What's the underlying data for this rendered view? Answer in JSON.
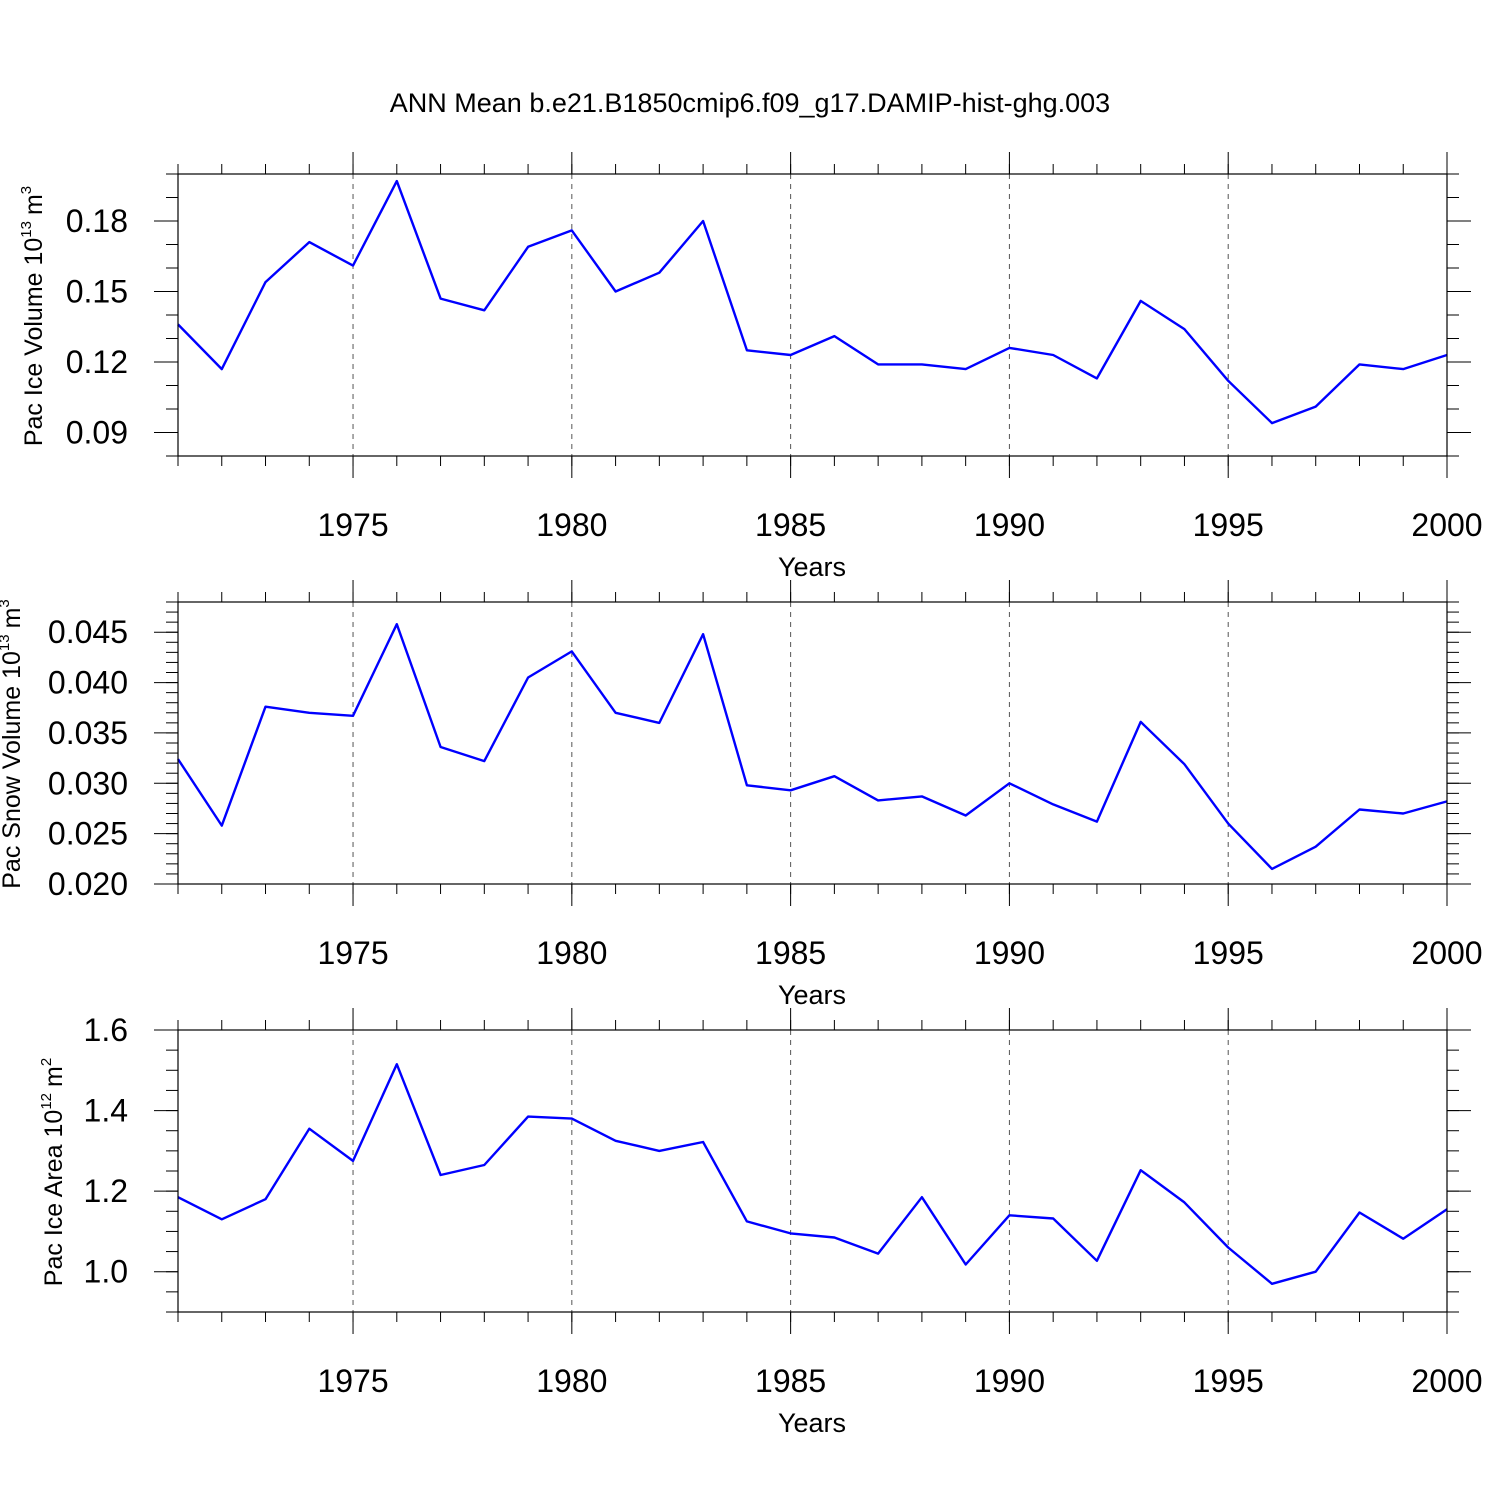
{
  "chart_data": {
    "title": "ANN Mean b.e21.B1850cmip6.f09_g17.DAMIP-hist-ghg.003",
    "panels": [
      {
        "type": "line",
        "ylabel_main": "Pac Ice Volume 10",
        "ylabel_exp": "13",
        "ylabel_unit": "m",
        "ylabel_unit_exp": "3",
        "xlabel": "Years",
        "xlim": [
          1971,
          2000
        ],
        "ylim": [
          0.08,
          0.2
        ],
        "yticks": [
          0.09,
          0.12,
          0.15,
          0.18
        ],
        "ytick_labels": [
          "0.09",
          "0.12",
          "0.15",
          "0.18"
        ],
        "y_minor_step": 0.01,
        "xticks": [
          1975,
          1980,
          1985,
          1990,
          1995,
          2000
        ],
        "xtick_labels": [
          "1975",
          "1980",
          "1985",
          "1990",
          "1995",
          "2000"
        ],
        "grid": "vertical-dashed",
        "color": "#0000ff",
        "x": [
          1971,
          1972,
          1973,
          1974,
          1975,
          1976,
          1977,
          1978,
          1979,
          1980,
          1981,
          1982,
          1983,
          1984,
          1985,
          1986,
          1987,
          1988,
          1989,
          1990,
          1991,
          1992,
          1993,
          1994,
          1995,
          1996,
          1997,
          1998,
          1999,
          2000
        ],
        "values": [
          0.136,
          0.117,
          0.154,
          0.171,
          0.161,
          0.197,
          0.147,
          0.142,
          0.169,
          0.176,
          0.15,
          0.158,
          0.18,
          0.125,
          0.123,
          0.131,
          0.119,
          0.119,
          0.117,
          0.126,
          0.123,
          0.113,
          0.146,
          0.134,
          0.112,
          0.094,
          0.101,
          0.119,
          0.117,
          0.123
        ]
      },
      {
        "type": "line",
        "ylabel_main": "Pac Snow Volume 10",
        "ylabel_exp": "13",
        "ylabel_unit": "m",
        "ylabel_unit_exp": "3",
        "xlabel": "Years",
        "xlim": [
          1971,
          2000
        ],
        "ylim": [
          0.02,
          0.048
        ],
        "yticks": [
          0.02,
          0.025,
          0.03,
          0.035,
          0.04,
          0.045
        ],
        "ytick_labels": [
          "0.020",
          "0.025",
          "0.030",
          "0.035",
          "0.040",
          "0.045"
        ],
        "y_minor_step": 0.001,
        "xticks": [
          1975,
          1980,
          1985,
          1990,
          1995,
          2000
        ],
        "xtick_labels": [
          "1975",
          "1980",
          "1985",
          "1990",
          "1995",
          "2000"
        ],
        "grid": "vertical-dashed",
        "color": "#0000ff",
        "x": [
          1971,
          1972,
          1973,
          1974,
          1975,
          1976,
          1977,
          1978,
          1979,
          1980,
          1981,
          1982,
          1983,
          1984,
          1985,
          1986,
          1987,
          1988,
          1989,
          1990,
          1991,
          1992,
          1993,
          1994,
          1995,
          1996,
          1997,
          1998,
          1999,
          2000
        ],
        "values": [
          0.0324,
          0.0258,
          0.0376,
          0.037,
          0.0367,
          0.0458,
          0.0336,
          0.0322,
          0.0405,
          0.0431,
          0.037,
          0.036,
          0.0448,
          0.0298,
          0.0293,
          0.0307,
          0.0283,
          0.0287,
          0.0268,
          0.03,
          0.0279,
          0.0262,
          0.0361,
          0.0319,
          0.026,
          0.0215,
          0.0237,
          0.0274,
          0.027,
          0.0282
        ]
      },
      {
        "type": "line",
        "ylabel_main": "Pac Ice Area 10",
        "ylabel_exp": "12",
        "ylabel_unit": "m",
        "ylabel_unit_exp": "2",
        "xlabel": "Years",
        "xlim": [
          1971,
          2000
        ],
        "ylim": [
          0.9,
          1.6
        ],
        "yticks": [
          1.0,
          1.2,
          1.4,
          1.6
        ],
        "ytick_labels": [
          "1.0",
          "1.2",
          "1.4",
          "1.6"
        ],
        "y_minor_step": 0.05,
        "xticks": [
          1975,
          1980,
          1985,
          1990,
          1995,
          2000
        ],
        "xtick_labels": [
          "1975",
          "1980",
          "1985",
          "1990",
          "1995",
          "2000"
        ],
        "grid": "vertical-dashed",
        "color": "#0000ff",
        "x": [
          1971,
          1972,
          1973,
          1974,
          1975,
          1976,
          1977,
          1978,
          1979,
          1980,
          1981,
          1982,
          1983,
          1984,
          1985,
          1986,
          1987,
          1988,
          1989,
          1990,
          1991,
          1992,
          1993,
          1994,
          1995,
          1996,
          1997,
          1998,
          1999,
          2000
        ],
        "values": [
          1.185,
          1.13,
          1.18,
          1.355,
          1.275,
          1.515,
          1.24,
          1.265,
          1.385,
          1.38,
          1.325,
          1.3,
          1.322,
          1.125,
          1.095,
          1.085,
          1.045,
          1.185,
          1.018,
          1.14,
          1.132,
          1.027,
          1.252,
          1.172,
          1.06,
          0.97,
          1.0,
          1.147,
          1.082,
          1.155
        ]
      }
    ]
  }
}
